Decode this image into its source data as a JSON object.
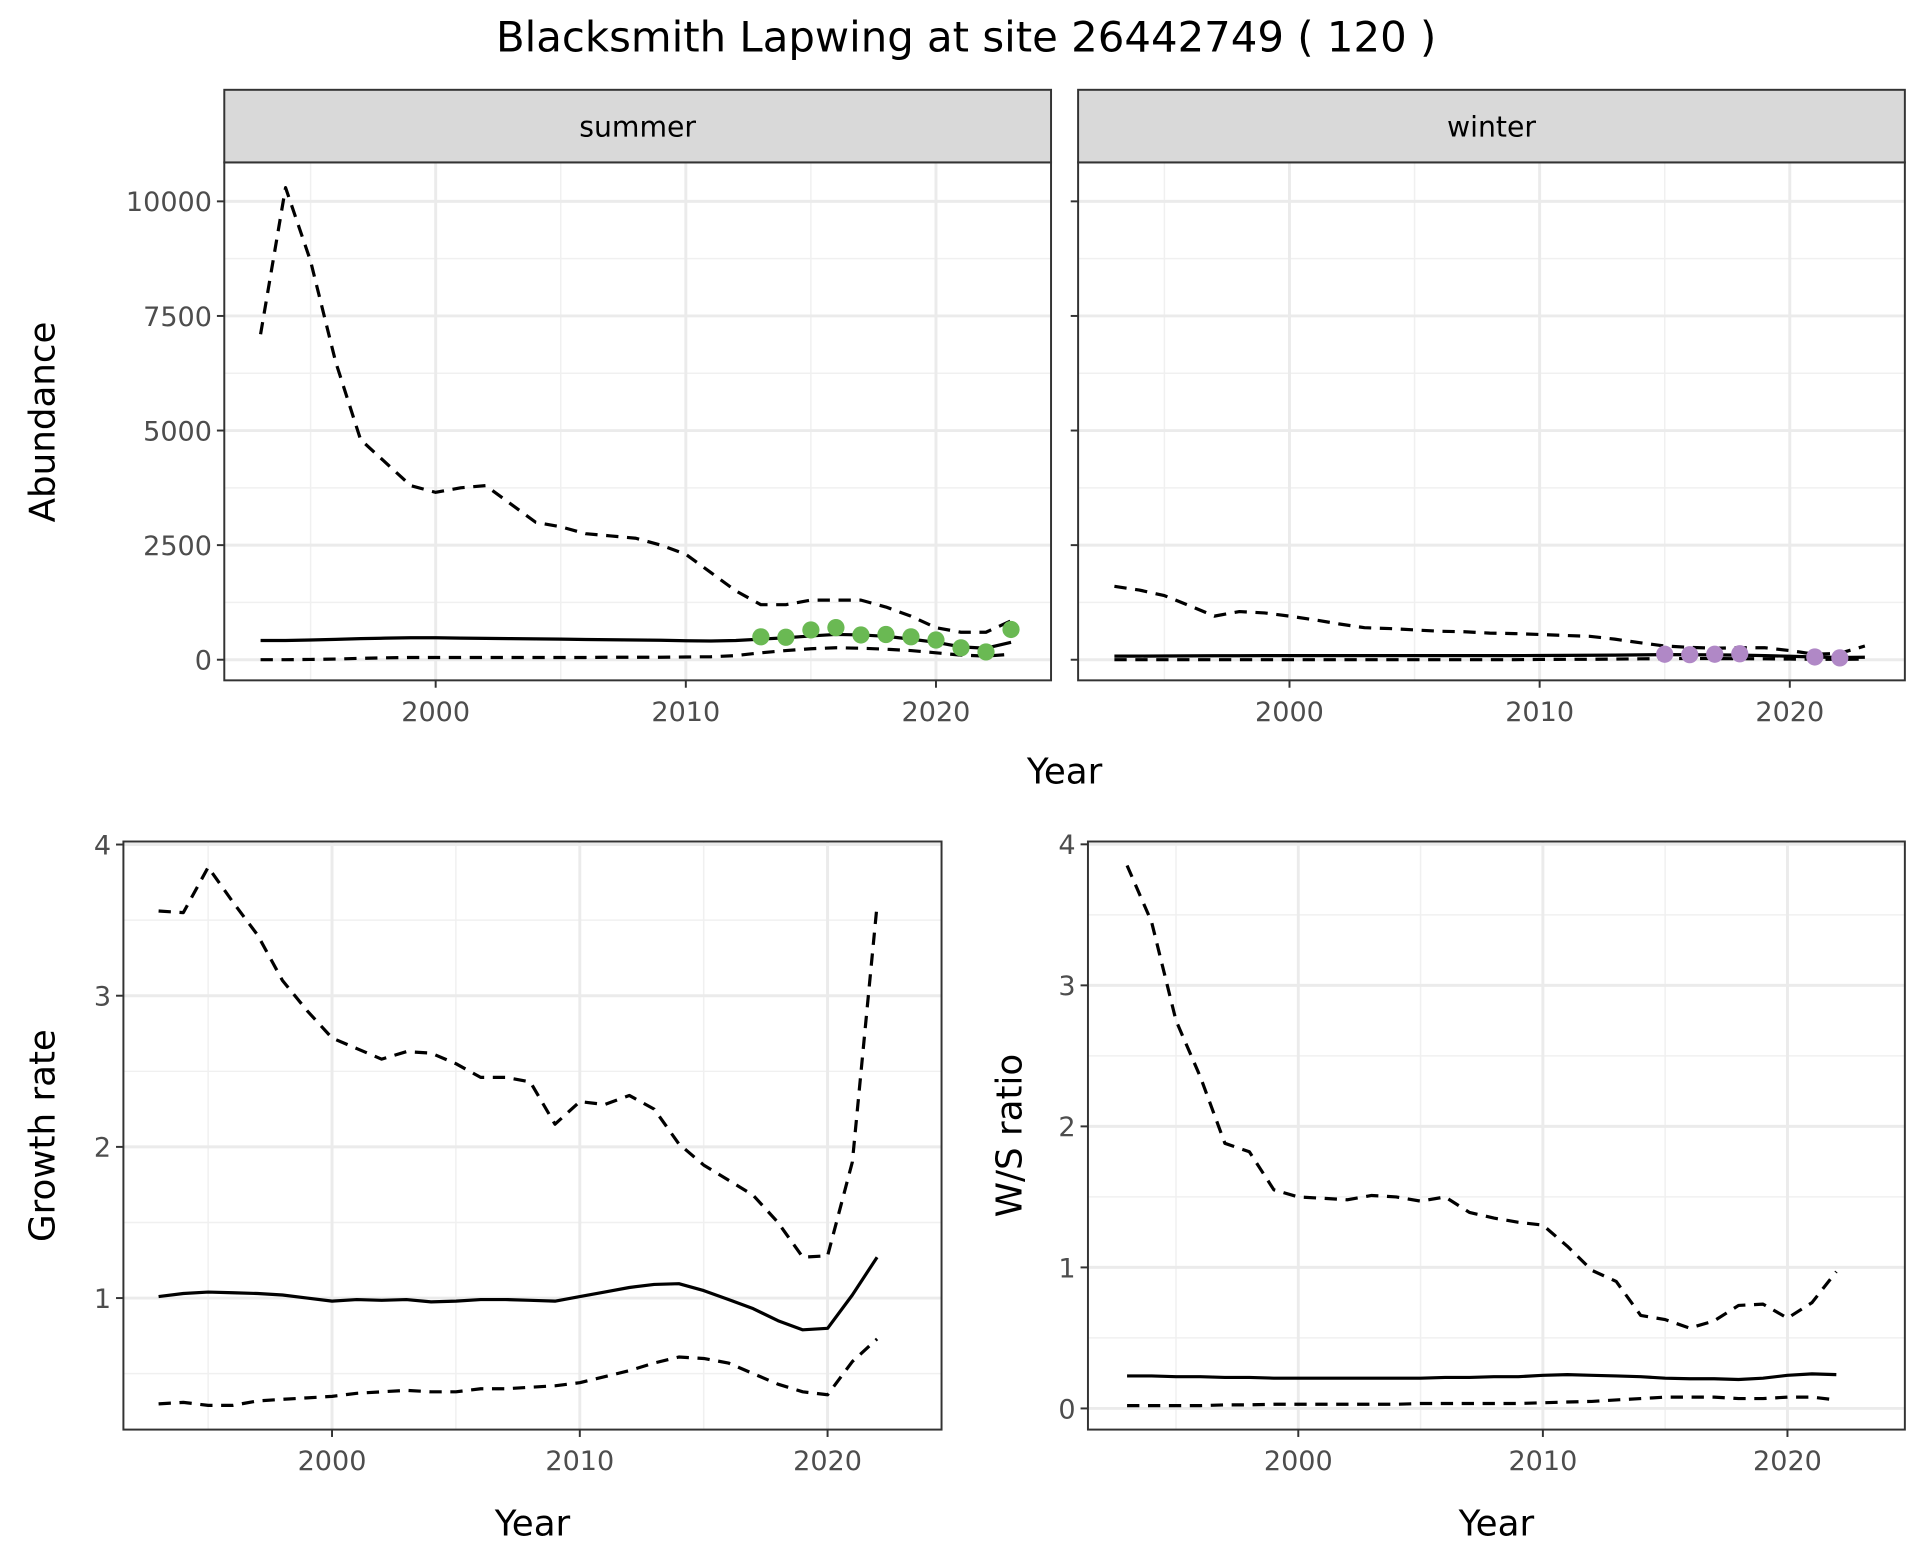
{
  "chart_data": [
    {
      "type": "line",
      "title": "Blacksmith Lapwing at site 26442749 ( 120 )",
      "panel": "summer",
      "xlabel": "Year",
      "ylabel": "Abundance",
      "xlim": [
        1991.55,
        2024.6
      ],
      "ylim": [
        -450,
        10850
      ],
      "xticks": [
        2000,
        2010,
        2020
      ],
      "yticks": [
        0,
        2500,
        5000,
        7500,
        10000
      ],
      "grid": true,
      "point_color": "#6ab953",
      "x": [
        1993,
        1994,
        1995,
        1996,
        1997,
        1998,
        1999,
        2000,
        2001,
        2002,
        2003,
        2004,
        2005,
        2006,
        2007,
        2008,
        2009,
        2010,
        2011,
        2012,
        2013,
        2014,
        2015,
        2016,
        2017,
        2018,
        2019,
        2020,
        2021,
        2022,
        2023
      ],
      "series": [
        {
          "name": "upper",
          "style": "dashed",
          "values": [
            7100,
            10300,
            8700,
            6500,
            4800,
            4300,
            3800,
            3650,
            3750,
            3800,
            3400,
            3000,
            2900,
            2750,
            2700,
            2650,
            2500,
            2300,
            1900,
            1500,
            1200,
            1200,
            1300,
            1300,
            1300,
            1150,
            950,
            700,
            600,
            600,
            850
          ]
        },
        {
          "name": "mean",
          "style": "solid",
          "values": [
            420,
            420,
            430,
            445,
            460,
            470,
            480,
            480,
            470,
            465,
            460,
            455,
            450,
            440,
            435,
            430,
            425,
            415,
            410,
            420,
            450,
            480,
            520,
            550,
            540,
            510,
            450,
            380,
            280,
            250,
            380
          ]
        },
        {
          "name": "lower",
          "style": "dashed",
          "values": [
            0,
            0,
            5,
            15,
            30,
            40,
            50,
            50,
            50,
            50,
            50,
            50,
            50,
            50,
            55,
            55,
            55,
            60,
            65,
            90,
            150,
            200,
            240,
            260,
            250,
            230,
            200,
            150,
            100,
            80,
            120
          ]
        }
      ],
      "points": {
        "x": [
          2013,
          2014,
          2015,
          2016,
          2017,
          2018,
          2019,
          2020,
          2021,
          2022,
          2023
        ],
        "y": [
          500,
          490,
          650,
          700,
          540,
          550,
          500,
          430,
          260,
          170,
          660
        ]
      }
    },
    {
      "type": "line",
      "panel": "winter",
      "xlabel": "Year",
      "xlim": [
        1991.55,
        2024.6
      ],
      "ylim": [
        -450,
        10850
      ],
      "xticks": [
        2000,
        2010,
        2020
      ],
      "yticks": [
        0,
        2500,
        5000,
        7500,
        10000
      ],
      "grid": true,
      "point_color": "#b088c6",
      "x": [
        1993,
        1994,
        1995,
        1996,
        1997,
        1998,
        1999,
        2000,
        2001,
        2002,
        2003,
        2004,
        2005,
        2006,
        2007,
        2008,
        2009,
        2010,
        2011,
        2012,
        2013,
        2014,
        2015,
        2016,
        2017,
        2018,
        2019,
        2020,
        2021,
        2022,
        2023
      ],
      "series": [
        {
          "name": "upper",
          "style": "dashed",
          "values": [
            1600,
            1520,
            1400,
            1180,
            950,
            1050,
            1020,
            950,
            870,
            780,
            700,
            680,
            650,
            620,
            610,
            580,
            570,
            550,
            530,
            510,
            450,
            370,
            300,
            270,
            250,
            260,
            260,
            200,
            120,
            140,
            300
          ]
        },
        {
          "name": "mean",
          "style": "solid",
          "values": [
            80,
            80,
            82,
            84,
            86,
            88,
            90,
            90,
            90,
            90,
            90,
            90,
            90,
            90,
            90,
            90,
            90,
            92,
            95,
            98,
            100,
            105,
            110,
            108,
            105,
            100,
            90,
            75,
            60,
            50,
            55
          ]
        },
        {
          "name": "lower",
          "style": "dashed",
          "values": [
            0,
            0,
            0,
            0,
            0,
            0,
            0,
            0,
            0,
            0,
            0,
            0,
            0,
            0,
            0,
            0,
            0,
            5,
            8,
            10,
            15,
            20,
            25,
            25,
            25,
            22,
            20,
            15,
            10,
            10,
            15
          ]
        }
      ],
      "points": {
        "x": [
          2015,
          2016,
          2017,
          2018,
          2021,
          2022
        ],
        "y": [
          120,
          110,
          120,
          130,
          60,
          40
        ]
      }
    },
    {
      "type": "line",
      "xlabel": "Year",
      "ylabel": "Growth rate",
      "xlim": [
        1991.58,
        2024.6
      ],
      "ylim": [
        0.13,
        4.02
      ],
      "xticks": [
        2000,
        2010,
        2020
      ],
      "yticks": [
        1,
        2,
        3,
        4
      ],
      "grid": true,
      "x": [
        1993,
        1994,
        1995,
        1996,
        1997,
        1998,
        1999,
        2000,
        2001,
        2002,
        2003,
        2004,
        2005,
        2006,
        2007,
        2008,
        2009,
        2010,
        2011,
        2012,
        2013,
        2014,
        2015,
        2016,
        2017,
        2018,
        2019,
        2020,
        2021,
        2022
      ],
      "series": [
        {
          "name": "upper",
          "style": "dashed",
          "values": [
            3.56,
            3.55,
            3.85,
            3.62,
            3.4,
            3.1,
            2.9,
            2.72,
            2.65,
            2.58,
            2.63,
            2.62,
            2.55,
            2.46,
            2.46,
            2.43,
            2.15,
            2.3,
            2.28,
            2.34,
            2.25,
            2.02,
            1.88,
            1.78,
            1.68,
            1.5,
            1.27,
            1.28,
            1.9,
            3.6
          ]
        },
        {
          "name": "mean",
          "style": "solid",
          "values": [
            1.01,
            1.03,
            1.04,
            1.035,
            1.03,
            1.02,
            1.0,
            0.98,
            0.99,
            0.985,
            0.99,
            0.975,
            0.98,
            0.99,
            0.99,
            0.985,
            0.98,
            1.01,
            1.04,
            1.07,
            1.09,
            1.095,
            1.05,
            0.99,
            0.93,
            0.85,
            0.79,
            0.8,
            1.02,
            1.27
          ]
        },
        {
          "name": "lower",
          "style": "dashed",
          "values": [
            0.3,
            0.31,
            0.29,
            0.29,
            0.32,
            0.33,
            0.34,
            0.35,
            0.37,
            0.38,
            0.39,
            0.38,
            0.38,
            0.4,
            0.4,
            0.41,
            0.42,
            0.44,
            0.48,
            0.52,
            0.57,
            0.61,
            0.6,
            0.57,
            0.5,
            0.43,
            0.38,
            0.36,
            0.58,
            0.73
          ]
        }
      ]
    },
    {
      "type": "line",
      "xlabel": "Year",
      "ylabel": "W/S ratio",
      "xlim": [
        1991.4,
        2024.8
      ],
      "ylim": [
        -0.15,
        4.02
      ],
      "xticks": [
        2000,
        2010,
        2020
      ],
      "yticks": [
        0,
        1,
        2,
        3,
        4
      ],
      "grid": true,
      "x": [
        1993,
        1994,
        1995,
        1996,
        1997,
        1998,
        1999,
        2000,
        2001,
        2002,
        2003,
        2004,
        2005,
        2006,
        2007,
        2008,
        2009,
        2010,
        2011,
        2012,
        2013,
        2014,
        2015,
        2016,
        2017,
        2018,
        2019,
        2020,
        2021,
        2022
      ],
      "series": [
        {
          "name": "upper",
          "style": "dashed",
          "values": [
            3.85,
            3.45,
            2.75,
            2.35,
            1.88,
            1.82,
            1.55,
            1.5,
            1.49,
            1.48,
            1.51,
            1.5,
            1.47,
            1.5,
            1.39,
            1.35,
            1.32,
            1.3,
            1.15,
            0.98,
            0.9,
            0.66,
            0.63,
            0.57,
            0.62,
            0.73,
            0.74,
            0.64,
            0.75,
            0.97
          ]
        },
        {
          "name": "mean",
          "style": "solid",
          "values": [
            0.23,
            0.23,
            0.225,
            0.225,
            0.22,
            0.22,
            0.215,
            0.215,
            0.215,
            0.215,
            0.215,
            0.215,
            0.215,
            0.22,
            0.22,
            0.225,
            0.225,
            0.235,
            0.24,
            0.235,
            0.23,
            0.225,
            0.215,
            0.21,
            0.21,
            0.205,
            0.215,
            0.235,
            0.245,
            0.24
          ]
        },
        {
          "name": "lower",
          "style": "dashed",
          "values": [
            0.02,
            0.02,
            0.02,
            0.02,
            0.025,
            0.025,
            0.03,
            0.03,
            0.03,
            0.03,
            0.03,
            0.03,
            0.035,
            0.035,
            0.035,
            0.035,
            0.035,
            0.04,
            0.045,
            0.05,
            0.06,
            0.07,
            0.08,
            0.08,
            0.08,
            0.07,
            0.07,
            0.08,
            0.08,
            0.06
          ]
        }
      ]
    }
  ],
  "title": "Blacksmith Lapwing at site 26442749 ( 120 )",
  "strips": [
    "summer",
    "winter"
  ],
  "top_xlabel": "Year",
  "top_ylabel": "Abundance"
}
